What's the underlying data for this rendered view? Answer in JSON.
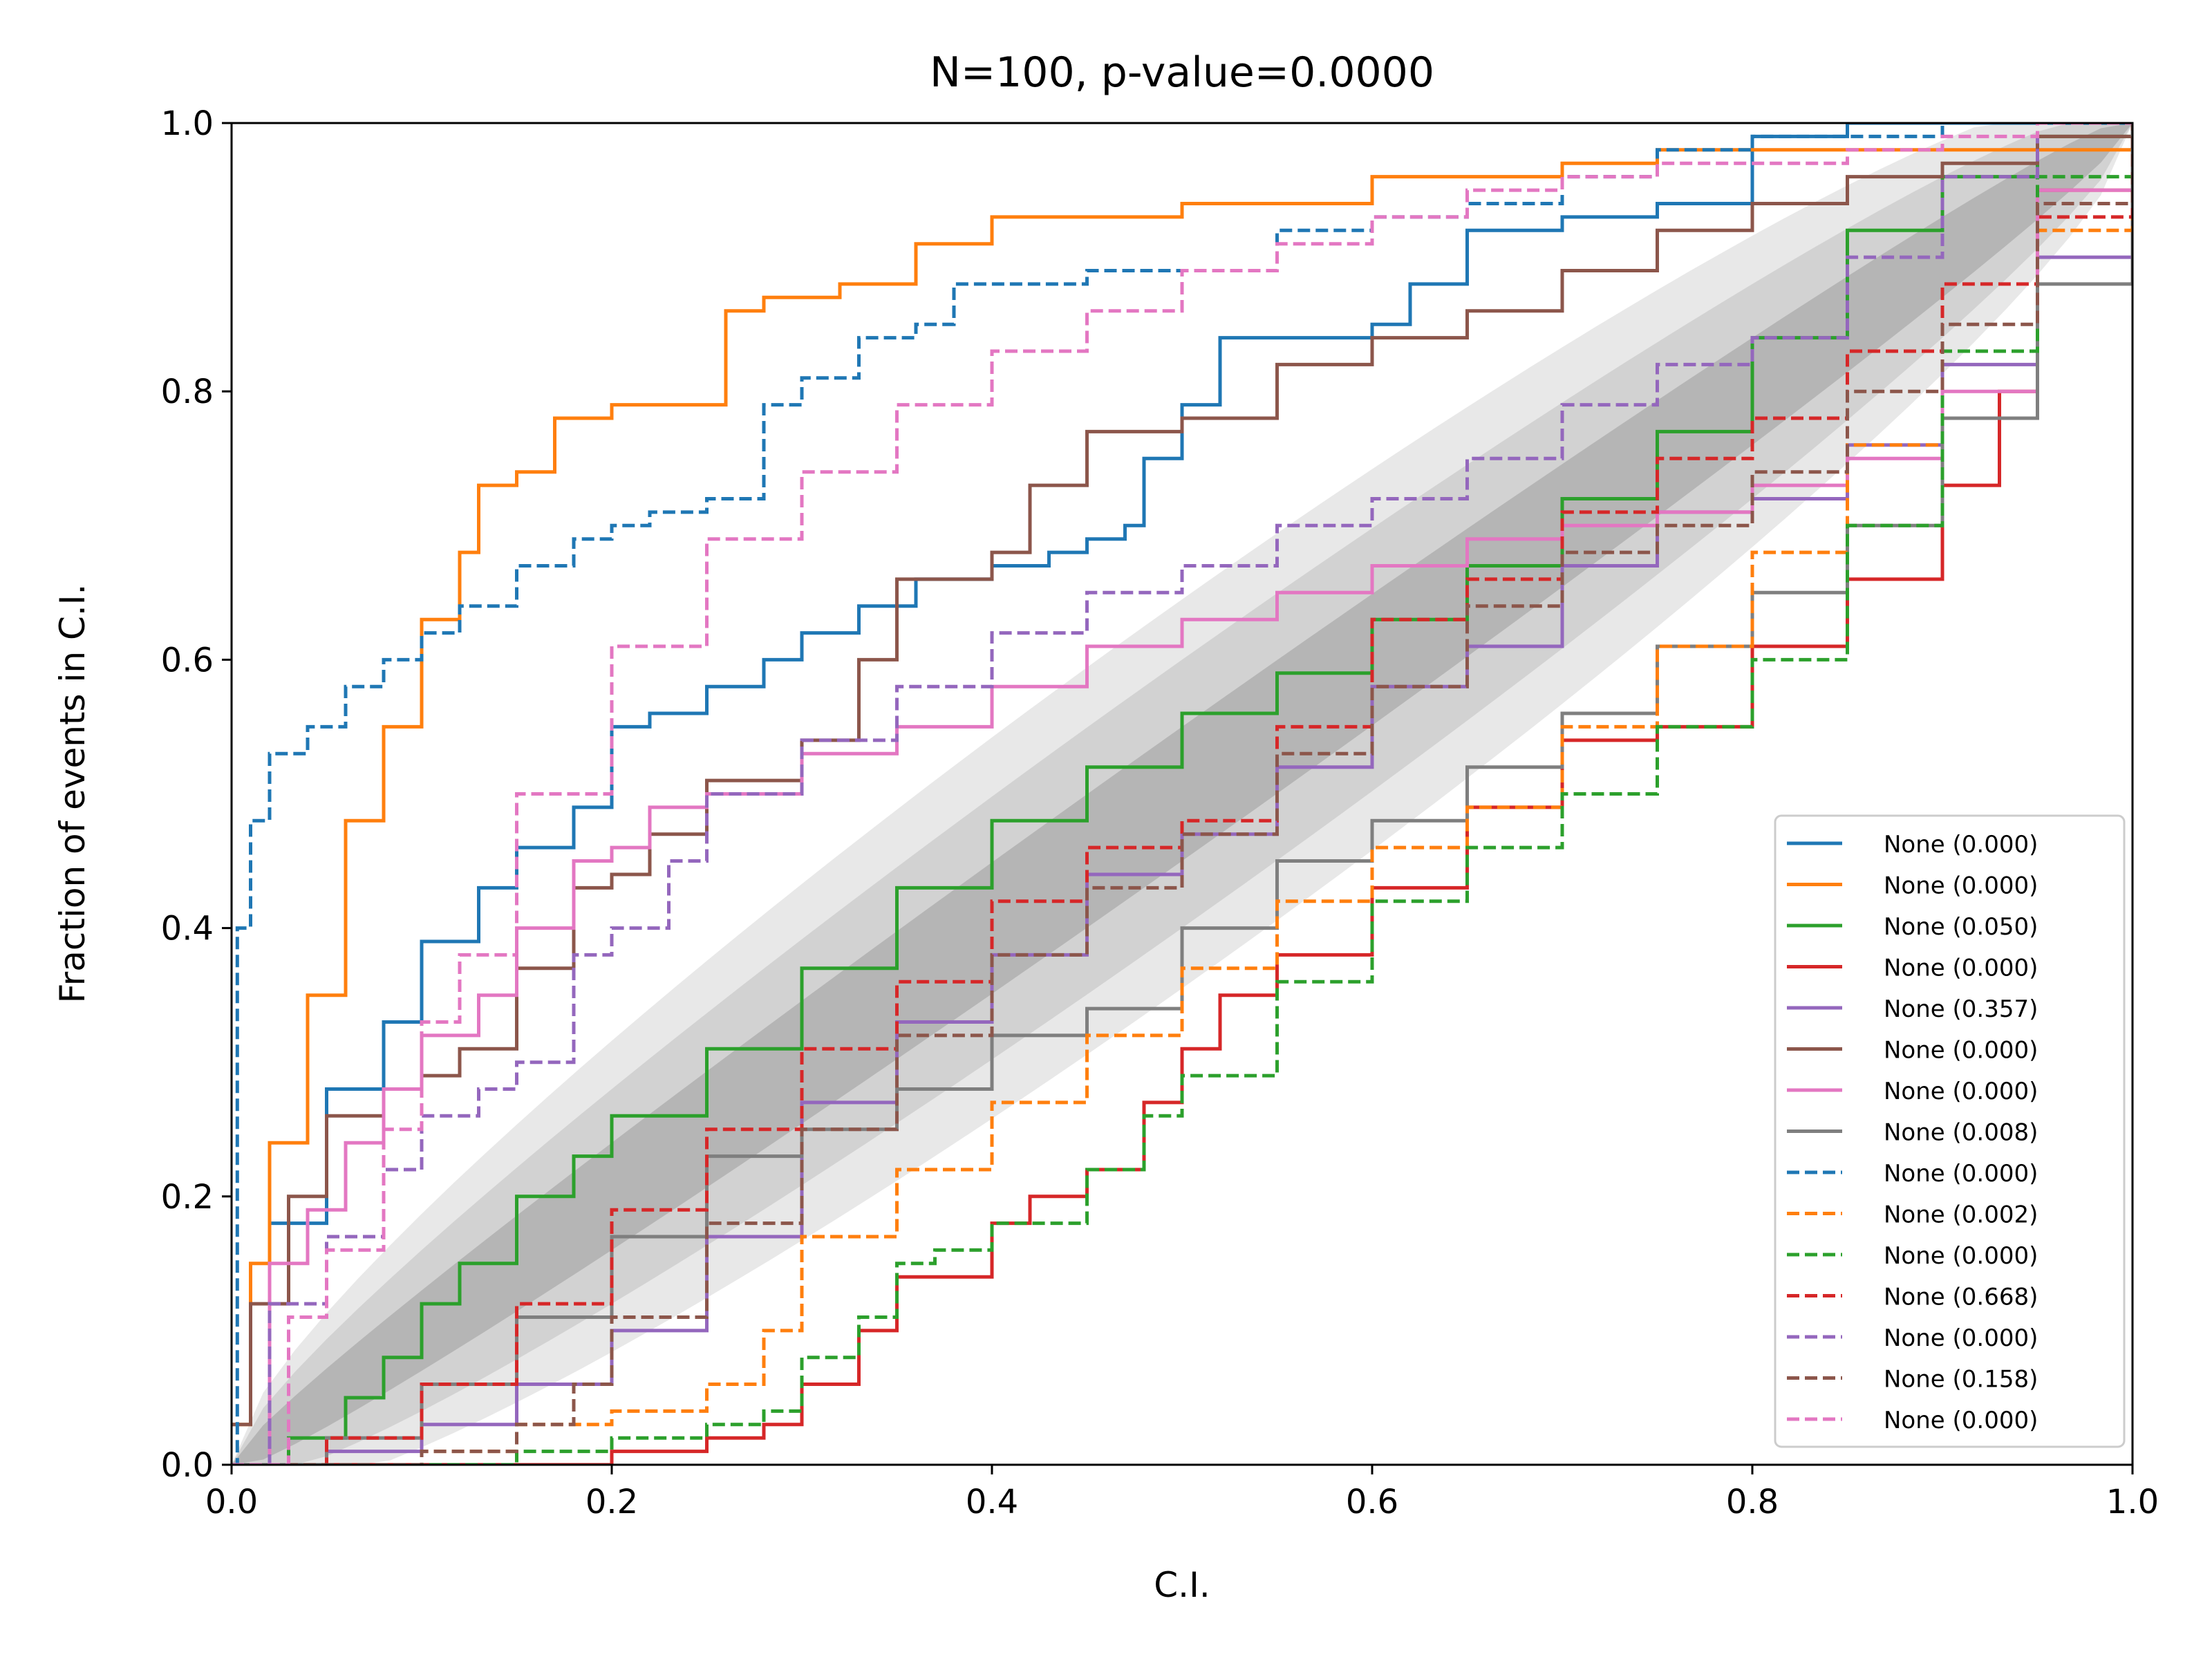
{
  "chart_data": {
    "type": "line",
    "title": "N=100, p-value=0.0000",
    "xlabel": "C.I.",
    "ylabel": "Fraction of events in C.I.",
    "xlim": [
      0.0,
      1.0
    ],
    "ylim": [
      0.0,
      1.0
    ],
    "x_ticks": [
      "0.0",
      "0.2",
      "0.4",
      "0.6",
      "0.8",
      "1.0"
    ],
    "y_ticks": [
      "0.0",
      "0.2",
      "0.4",
      "0.6",
      "0.8",
      "1.0"
    ],
    "grid": false,
    "legend_position": "lower-right",
    "confidence_bands": [
      {
        "name": "3-sigma band",
        "color": "#e8e8e8",
        "half_width_peak": 0.145
      },
      {
        "name": "2-sigma band",
        "color": "#d2d2d2",
        "half_width_peak": 0.1
      },
      {
        "name": "1-sigma band",
        "color": "#b5b5b5",
        "half_width_peak": 0.05
      }
    ],
    "series": [
      {
        "name": "None (0.000)",
        "color": "#1f77b4",
        "dash": "solid",
        "x": [
          0,
          0.02,
          0.05,
          0.08,
          0.1,
          0.13,
          0.15,
          0.18,
          0.2,
          0.22,
          0.25,
          0.28,
          0.3,
          0.33,
          0.36,
          0.4,
          0.43,
          0.45,
          0.47,
          0.48,
          0.5,
          0.52,
          0.55,
          0.58,
          0.6,
          0.62,
          0.65,
          0.7,
          0.75,
          0.8,
          0.85,
          1.0
        ],
        "y": [
          0,
          0.18,
          0.28,
          0.33,
          0.39,
          0.43,
          0.46,
          0.49,
          0.55,
          0.56,
          0.58,
          0.6,
          0.62,
          0.64,
          0.66,
          0.67,
          0.68,
          0.69,
          0.7,
          0.75,
          0.79,
          0.84,
          0.84,
          0.84,
          0.85,
          0.88,
          0.92,
          0.93,
          0.94,
          0.99,
          1.0,
          1.0
        ]
      },
      {
        "name": "None (0.000)",
        "color": "#ff7f0e",
        "dash": "solid",
        "x": [
          0,
          0.01,
          0.02,
          0.04,
          0.06,
          0.08,
          0.1,
          0.12,
          0.13,
          0.15,
          0.17,
          0.2,
          0.24,
          0.26,
          0.28,
          0.32,
          0.36,
          0.4,
          0.45,
          0.5,
          0.6,
          0.7,
          0.75,
          0.8,
          1.0
        ],
        "y": [
          0.03,
          0.15,
          0.24,
          0.35,
          0.48,
          0.55,
          0.63,
          0.68,
          0.73,
          0.74,
          0.78,
          0.79,
          0.79,
          0.86,
          0.87,
          0.88,
          0.91,
          0.93,
          0.93,
          0.94,
          0.96,
          0.97,
          0.98,
          0.98,
          1.0
        ]
      },
      {
        "name": "None (0.050)",
        "color": "#2ca02c",
        "dash": "solid",
        "x": [
          0,
          0.03,
          0.06,
          0.08,
          0.1,
          0.12,
          0.15,
          0.18,
          0.2,
          0.25,
          0.3,
          0.35,
          0.4,
          0.45,
          0.5,
          0.55,
          0.6,
          0.65,
          0.7,
          0.75,
          0.8,
          0.85,
          0.9,
          0.95,
          1.0
        ],
        "y": [
          0,
          0.02,
          0.05,
          0.08,
          0.12,
          0.15,
          0.2,
          0.23,
          0.26,
          0.31,
          0.37,
          0.43,
          0.48,
          0.52,
          0.56,
          0.59,
          0.63,
          0.67,
          0.72,
          0.77,
          0.84,
          0.92,
          0.96,
          0.99,
          1.0
        ]
      },
      {
        "name": "None (0.000)",
        "color": "#d62728",
        "dash": "solid",
        "x": [
          0,
          0.1,
          0.2,
          0.25,
          0.28,
          0.3,
          0.33,
          0.35,
          0.4,
          0.42,
          0.45,
          0.48,
          0.5,
          0.52,
          0.55,
          0.6,
          0.65,
          0.7,
          0.75,
          0.8,
          0.85,
          0.9,
          0.93,
          0.95,
          1.0
        ],
        "y": [
          0,
          0.0,
          0.01,
          0.02,
          0.03,
          0.06,
          0.1,
          0.14,
          0.18,
          0.2,
          0.22,
          0.27,
          0.31,
          0.35,
          0.38,
          0.43,
          0.49,
          0.54,
          0.55,
          0.61,
          0.66,
          0.73,
          0.8,
          0.95,
          1.0
        ]
      },
      {
        "name": "None (0.357)",
        "color": "#9467bd",
        "dash": "solid",
        "x": [
          0,
          0.05,
          0.1,
          0.15,
          0.2,
          0.25,
          0.3,
          0.35,
          0.4,
          0.45,
          0.5,
          0.55,
          0.6,
          0.65,
          0.7,
          0.75,
          0.8,
          0.85,
          0.9,
          0.95,
          1.0
        ],
        "y": [
          0,
          0.01,
          0.03,
          0.06,
          0.1,
          0.17,
          0.27,
          0.33,
          0.38,
          0.44,
          0.47,
          0.52,
          0.58,
          0.61,
          0.67,
          0.71,
          0.72,
          0.76,
          0.82,
          0.9,
          1.0
        ]
      },
      {
        "name": "None (0.000)",
        "color": "#8c564b",
        "dash": "solid",
        "x": [
          0,
          0.01,
          0.03,
          0.05,
          0.08,
          0.1,
          0.12,
          0.15,
          0.18,
          0.2,
          0.22,
          0.25,
          0.3,
          0.33,
          0.35,
          0.4,
          0.42,
          0.45,
          0.5,
          0.55,
          0.6,
          0.65,
          0.7,
          0.75,
          0.8,
          0.85,
          0.9,
          0.95,
          1.0
        ],
        "y": [
          0.03,
          0.12,
          0.2,
          0.26,
          0.28,
          0.29,
          0.31,
          0.37,
          0.43,
          0.44,
          0.47,
          0.51,
          0.54,
          0.6,
          0.66,
          0.68,
          0.73,
          0.77,
          0.78,
          0.82,
          0.84,
          0.86,
          0.89,
          0.92,
          0.94,
          0.96,
          0.97,
          0.99,
          1.0
        ]
      },
      {
        "name": "None (0.000)",
        "color": "#e377c2",
        "dash": "solid",
        "x": [
          0,
          0.02,
          0.04,
          0.06,
          0.08,
          0.1,
          0.13,
          0.15,
          0.18,
          0.2,
          0.22,
          0.25,
          0.3,
          0.35,
          0.4,
          0.45,
          0.5,
          0.55,
          0.6,
          0.65,
          0.7,
          0.75,
          0.8,
          0.85,
          0.9,
          0.95,
          1.0
        ],
        "y": [
          0,
          0.15,
          0.19,
          0.24,
          0.28,
          0.32,
          0.35,
          0.4,
          0.45,
          0.46,
          0.49,
          0.5,
          0.53,
          0.55,
          0.58,
          0.61,
          0.63,
          0.65,
          0.67,
          0.69,
          0.7,
          0.71,
          0.73,
          0.75,
          0.8,
          0.95,
          1.0
        ]
      },
      {
        "name": "None (0.008)",
        "color": "#7f7f7f",
        "dash": "solid",
        "x": [
          0,
          0.05,
          0.1,
          0.15,
          0.2,
          0.25,
          0.3,
          0.35,
          0.4,
          0.45,
          0.5,
          0.55,
          0.6,
          0.65,
          0.7,
          0.75,
          0.8,
          0.85,
          0.9,
          0.95,
          1.0
        ],
        "y": [
          0,
          0.02,
          0.06,
          0.11,
          0.17,
          0.23,
          0.25,
          0.28,
          0.32,
          0.34,
          0.4,
          0.45,
          0.48,
          0.52,
          0.56,
          0.61,
          0.65,
          0.7,
          0.78,
          0.88,
          1.0
        ]
      },
      {
        "name": "None (0.000)",
        "color": "#1f77b4",
        "dash": "dashed",
        "x": [
          0,
          0.003,
          0.01,
          0.02,
          0.04,
          0.06,
          0.08,
          0.1,
          0.12,
          0.15,
          0.18,
          0.2,
          0.22,
          0.25,
          0.28,
          0.3,
          0.33,
          0.36,
          0.38,
          0.4,
          0.45,
          0.5,
          0.55,
          0.6,
          0.65,
          0.7,
          0.75,
          0.8,
          0.9,
          1.0
        ],
        "y": [
          0,
          0.4,
          0.48,
          0.53,
          0.55,
          0.58,
          0.6,
          0.62,
          0.64,
          0.67,
          0.69,
          0.7,
          0.71,
          0.72,
          0.79,
          0.81,
          0.84,
          0.85,
          0.88,
          0.88,
          0.89,
          0.89,
          0.92,
          0.93,
          0.94,
          0.96,
          0.98,
          0.99,
          1.0,
          1.0
        ]
      },
      {
        "name": "None (0.002)",
        "color": "#ff7f0e",
        "dash": "dashed",
        "x": [
          0,
          0.1,
          0.15,
          0.2,
          0.25,
          0.28,
          0.3,
          0.35,
          0.4,
          0.45,
          0.5,
          0.55,
          0.6,
          0.65,
          0.7,
          0.75,
          0.8,
          0.85,
          0.9,
          0.95,
          1.0
        ],
        "y": [
          0,
          0.01,
          0.03,
          0.04,
          0.06,
          0.1,
          0.17,
          0.22,
          0.27,
          0.32,
          0.37,
          0.42,
          0.46,
          0.49,
          0.55,
          0.61,
          0.68,
          0.76,
          0.83,
          0.92,
          1.0
        ]
      },
      {
        "name": "None (0.000)",
        "color": "#2ca02c",
        "dash": "dashed",
        "x": [
          0,
          0.15,
          0.2,
          0.25,
          0.28,
          0.3,
          0.33,
          0.35,
          0.37,
          0.4,
          0.45,
          0.48,
          0.5,
          0.55,
          0.6,
          0.65,
          0.7,
          0.75,
          0.8,
          0.85,
          0.9,
          0.95,
          1.0
        ],
        "y": [
          0,
          0.01,
          0.02,
          0.03,
          0.04,
          0.08,
          0.11,
          0.15,
          0.16,
          0.18,
          0.22,
          0.26,
          0.29,
          0.36,
          0.42,
          0.46,
          0.5,
          0.55,
          0.6,
          0.7,
          0.83,
          0.96,
          1.0
        ]
      },
      {
        "name": "None (0.668)",
        "color": "#d62728",
        "dash": "dashed",
        "x": [
          0,
          0.05,
          0.1,
          0.15,
          0.2,
          0.25,
          0.3,
          0.35,
          0.4,
          0.45,
          0.5,
          0.55,
          0.6,
          0.65,
          0.7,
          0.75,
          0.8,
          0.85,
          0.9,
          0.95,
          1.0
        ],
        "y": [
          0,
          0.02,
          0.06,
          0.12,
          0.19,
          0.25,
          0.31,
          0.36,
          0.42,
          0.46,
          0.48,
          0.55,
          0.63,
          0.66,
          0.71,
          0.75,
          0.78,
          0.83,
          0.88,
          0.93,
          1.0
        ]
      },
      {
        "name": "None (0.000)",
        "color": "#9467bd",
        "dash": "dashed",
        "x": [
          0,
          0.02,
          0.05,
          0.08,
          0.1,
          0.13,
          0.15,
          0.18,
          0.2,
          0.23,
          0.25,
          0.3,
          0.35,
          0.4,
          0.45,
          0.5,
          0.55,
          0.6,
          0.65,
          0.7,
          0.75,
          0.8,
          0.85,
          0.9,
          0.95,
          1.0
        ],
        "y": [
          0,
          0.12,
          0.17,
          0.22,
          0.26,
          0.28,
          0.3,
          0.38,
          0.4,
          0.45,
          0.5,
          0.54,
          0.58,
          0.62,
          0.65,
          0.67,
          0.7,
          0.72,
          0.75,
          0.79,
          0.82,
          0.84,
          0.9,
          0.96,
          1.0,
          1.0
        ]
      },
      {
        "name": "None (0.158)",
        "color": "#8c564b",
        "dash": "dashed",
        "x": [
          0,
          0.05,
          0.1,
          0.15,
          0.18,
          0.2,
          0.25,
          0.3,
          0.35,
          0.4,
          0.45,
          0.5,
          0.55,
          0.6,
          0.65,
          0.7,
          0.75,
          0.8,
          0.85,
          0.9,
          0.95,
          1.0
        ],
        "y": [
          0,
          0.0,
          0.01,
          0.03,
          0.06,
          0.11,
          0.18,
          0.25,
          0.32,
          0.38,
          0.43,
          0.47,
          0.53,
          0.58,
          0.64,
          0.68,
          0.7,
          0.74,
          0.8,
          0.85,
          0.94,
          1.0
        ]
      },
      {
        "name": "None (0.000)",
        "color": "#e377c2",
        "dash": "dashed",
        "x": [
          0,
          0.03,
          0.05,
          0.08,
          0.1,
          0.12,
          0.15,
          0.2,
          0.25,
          0.3,
          0.35,
          0.4,
          0.45,
          0.5,
          0.55,
          0.6,
          0.65,
          0.7,
          0.75,
          0.8,
          0.85,
          0.9,
          0.95,
          1.0
        ],
        "y": [
          0,
          0.11,
          0.16,
          0.25,
          0.33,
          0.38,
          0.5,
          0.61,
          0.69,
          0.74,
          0.79,
          0.83,
          0.86,
          0.89,
          0.91,
          0.93,
          0.95,
          0.96,
          0.97,
          0.97,
          0.98,
          0.99,
          1.0,
          1.0
        ]
      }
    ]
  }
}
